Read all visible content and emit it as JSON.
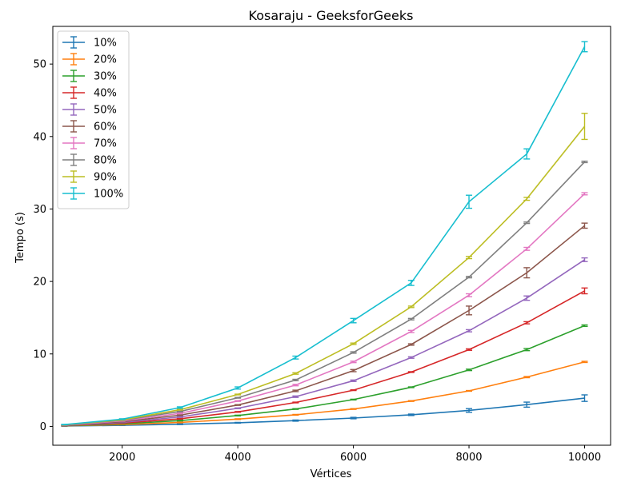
{
  "chart_data": {
    "type": "line",
    "title": "Kosaraju - GeeksforGeeks",
    "xlabel": "Vértices",
    "ylabel": "Tempo (s)",
    "x": [
      1000,
      2000,
      3000,
      4000,
      5000,
      6000,
      7000,
      8000,
      9000,
      10000
    ],
    "xlim": [
      800,
      10450
    ],
    "ylim": [
      -2.6,
      55.2
    ],
    "xticks": [
      2000,
      4000,
      6000,
      8000,
      10000
    ],
    "yticks": [
      0,
      10,
      20,
      30,
      40,
      50
    ],
    "legend": "upper left",
    "grid": false,
    "series": [
      {
        "name": "10%",
        "color": "#1f77b4",
        "values": [
          0.05,
          0.15,
          0.3,
          0.5,
          0.8,
          1.15,
          1.6,
          2.2,
          3.0,
          3.9
        ],
        "errors": [
          0.03,
          0.03,
          0.05,
          0.05,
          0.08,
          0.1,
          0.1,
          0.25,
          0.35,
          0.45
        ]
      },
      {
        "name": "20%",
        "color": "#ff7f0e",
        "values": [
          0.08,
          0.25,
          0.55,
          1.0,
          1.6,
          2.4,
          3.5,
          4.9,
          6.8,
          8.9
        ],
        "errors": [
          0.03,
          0.03,
          0.05,
          0.05,
          0.05,
          0.05,
          0.05,
          0.05,
          0.08,
          0.08
        ]
      },
      {
        "name": "30%",
        "color": "#2ca02c",
        "values": [
          0.1,
          0.35,
          0.8,
          1.5,
          2.4,
          3.7,
          5.4,
          7.8,
          10.6,
          13.9
        ],
        "errors": [
          0.03,
          0.03,
          0.05,
          0.05,
          0.05,
          0.05,
          0.05,
          0.1,
          0.15,
          0.1
        ]
      },
      {
        "name": "40%",
        "color": "#d62728",
        "values": [
          0.12,
          0.45,
          1.05,
          2.0,
          3.3,
          5.0,
          7.5,
          10.6,
          14.3,
          18.7
        ],
        "errors": [
          0.03,
          0.03,
          0.05,
          0.05,
          0.05,
          0.05,
          0.05,
          0.1,
          0.15,
          0.4
        ]
      },
      {
        "name": "50%",
        "color": "#9467bd",
        "values": [
          0.14,
          0.55,
          1.3,
          2.5,
          4.1,
          6.3,
          9.5,
          13.2,
          17.7,
          23.0
        ],
        "errors": [
          0.03,
          0.03,
          0.05,
          0.05,
          0.1,
          0.1,
          0.1,
          0.15,
          0.3,
          0.25
        ]
      },
      {
        "name": "60%",
        "color": "#8c564b",
        "values": [
          0.16,
          0.65,
          1.55,
          2.95,
          4.9,
          7.7,
          11.3,
          16.0,
          21.2,
          27.7
        ],
        "errors": [
          0.03,
          0.03,
          0.05,
          0.05,
          0.1,
          0.15,
          0.1,
          0.6,
          0.7,
          0.35
        ]
      },
      {
        "name": "70%",
        "color": "#e377c2",
        "values": [
          0.18,
          0.75,
          1.8,
          3.5,
          5.7,
          8.9,
          13.1,
          18.1,
          24.5,
          32.1
        ],
        "errors": [
          0.03,
          0.03,
          0.05,
          0.05,
          0.1,
          0.1,
          0.15,
          0.2,
          0.2,
          0.15
        ]
      },
      {
        "name": "80%",
        "color": "#7f7f7f",
        "values": [
          0.2,
          0.85,
          2.05,
          3.95,
          6.4,
          10.2,
          14.8,
          20.6,
          28.1,
          36.5
        ],
        "errors": [
          0.03,
          0.03,
          0.05,
          0.05,
          0.1,
          0.1,
          0.1,
          0.1,
          0.1,
          0.1
        ]
      },
      {
        "name": "90%",
        "color": "#bcbd22",
        "values": [
          0.22,
          0.9,
          2.3,
          4.4,
          7.3,
          11.4,
          16.5,
          23.3,
          31.4,
          41.4
        ],
        "errors": [
          0.03,
          0.03,
          0.05,
          0.05,
          0.1,
          0.1,
          0.1,
          0.15,
          0.2,
          1.8
        ]
      },
      {
        "name": "100%",
        "color": "#17becf",
        "values": [
          0.25,
          1.0,
          2.6,
          5.3,
          9.5,
          14.6,
          19.8,
          31.0,
          37.6,
          52.4
        ],
        "errors": [
          0.03,
          0.05,
          0.1,
          0.15,
          0.2,
          0.3,
          0.35,
          0.9,
          0.7,
          0.7
        ]
      }
    ]
  }
}
